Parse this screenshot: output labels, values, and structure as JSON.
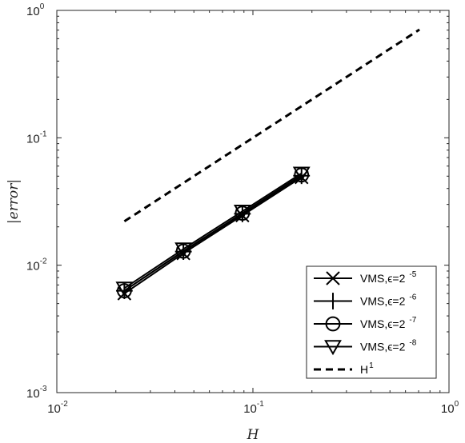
{
  "chart_data": {
    "type": "line",
    "xscale": "log",
    "yscale": "log",
    "xlim": [
      0.01,
      1
    ],
    "ylim": [
      0.001,
      1
    ],
    "grid": false,
    "legend_position": "bottom-right",
    "xlabel": "H",
    "ylabel": "|error|",
    "xticks": [
      {
        "value": 0.01,
        "base": "10",
        "exp": "-2"
      },
      {
        "value": 0.1,
        "base": "10",
        "exp": "-1"
      },
      {
        "value": 1,
        "base": "10",
        "exp": "0"
      }
    ],
    "yticks": [
      {
        "value": 0.001,
        "base": "10",
        "exp": "-3"
      },
      {
        "value": 0.01,
        "base": "10",
        "exp": "-2"
      },
      {
        "value": 0.1,
        "base": "10",
        "exp": "-1"
      },
      {
        "value": 1,
        "base": "10",
        "exp": "0"
      }
    ],
    "series": [
      {
        "name": "VMS,ϵ=2",
        "name_exp": "-5",
        "marker": "x",
        "style": "solid",
        "x": [
          0.0221,
          0.0442,
          0.0884,
          0.177
        ],
        "y": [
          0.006,
          0.0124,
          0.0246,
          0.049
        ]
      },
      {
        "name": "VMS,ϵ=2",
        "name_exp": "-6",
        "marker": "plus",
        "style": "solid",
        "x": [
          0.0221,
          0.0442,
          0.0884,
          0.177
        ],
        "y": [
          0.0063,
          0.0128,
          0.0253,
          0.0504
        ]
      },
      {
        "name": "VMS,ϵ=2",
        "name_exp": "-7",
        "marker": "circle",
        "style": "solid",
        "x": [
          0.0221,
          0.0442,
          0.0884,
          0.177
        ],
        "y": [
          0.0063,
          0.0129,
          0.0256,
          0.0511
        ]
      },
      {
        "name": "VMS,ϵ=2",
        "name_exp": "-8",
        "marker": "triangle-down",
        "style": "solid",
        "x": [
          0.0221,
          0.0442,
          0.0884,
          0.177
        ],
        "y": [
          0.0066,
          0.0134,
          0.0265,
          0.0527
        ]
      },
      {
        "name": "H",
        "name_exp": "1",
        "marker": "none",
        "style": "dashed",
        "x": [
          0.0221,
          0.707
        ],
        "y": [
          0.0221,
          0.707
        ]
      }
    ]
  }
}
